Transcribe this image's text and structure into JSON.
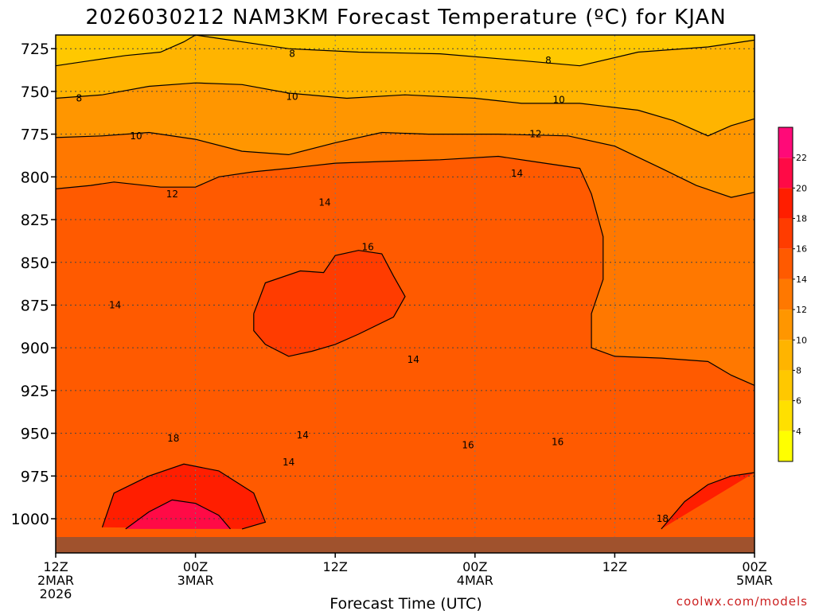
{
  "chart_data": {
    "type": "heatmap",
    "title": "2026030212 NAM3KM Forecast Temperature (ºC) for KJAN",
    "xlabel": "Forecast Time (UTC)",
    "ylabel": "",
    "y_axis": {
      "units": "hPa",
      "inverted": true,
      "range": [
        717,
        1020
      ],
      "ticks": [
        "725",
        "750",
        "775",
        "800",
        "825",
        "850",
        "875",
        "900",
        "925",
        "950",
        "975",
        "1000"
      ]
    },
    "x_axis": {
      "range_hours": [
        0,
        60
      ],
      "ticks": [
        {
          "line1": "12Z",
          "line2": "2MAR",
          "line3": "2026"
        },
        {
          "line1": "00Z",
          "line2": "3MAR",
          "line3": ""
        },
        {
          "line1": "12Z",
          "line2": "",
          "line3": ""
        },
        {
          "line1": "00Z",
          "line2": "4MAR",
          "line3": ""
        },
        {
          "line1": "12Z",
          "line2": "",
          "line3": ""
        },
        {
          "line1": "00Z",
          "line2": "5MAR",
          "line3": ""
        }
      ]
    },
    "grid": true,
    "ground_color": "#a0522d",
    "colorbar": {
      "placement": "right",
      "ticks": [
        "4",
        "6",
        "8",
        "10",
        "12",
        "14",
        "16",
        "18",
        "20",
        "22"
      ],
      "levels": [
        2,
        4,
        6,
        8,
        10,
        12,
        14,
        16,
        18,
        20,
        22,
        24
      ],
      "colors": [
        "#ffff00",
        "#ffe000",
        "#ffc800",
        "#ffb400",
        "#ff9600",
        "#ff7800",
        "#ff5a00",
        "#ff3c00",
        "#ff1e00",
        "#ff0a46",
        "#ff0a78"
      ]
    },
    "contour_labels": [
      {
        "value": "8",
        "x_hours": 20.3,
        "p": 728
      },
      {
        "value": "8",
        "x_hours": 42.3,
        "p": 732
      },
      {
        "value": "8",
        "x_hours": 2.0,
        "p": 754
      },
      {
        "value": "10",
        "x_hours": 20.3,
        "p": 753
      },
      {
        "value": "10",
        "x_hours": 43.2,
        "p": 755
      },
      {
        "value": "10",
        "x_hours": 6.9,
        "p": 776
      },
      {
        "value": "12",
        "x_hours": 41.2,
        "p": 775
      },
      {
        "value": "12",
        "x_hours": 10.0,
        "p": 810
      },
      {
        "value": "14",
        "x_hours": 39.6,
        "p": 798
      },
      {
        "value": "14",
        "x_hours": 23.1,
        "p": 815
      },
      {
        "value": "16",
        "x_hours": 26.8,
        "p": 841
      },
      {
        "value": "14",
        "x_hours": 5.1,
        "p": 875
      },
      {
        "value": "14",
        "x_hours": 30.7,
        "p": 907
      },
      {
        "value": "18",
        "x_hours": 10.1,
        "p": 953
      },
      {
        "value": "14",
        "x_hours": 21.2,
        "p": 951
      },
      {
        "value": "16",
        "x_hours": 35.4,
        "p": 957
      },
      {
        "value": "16",
        "x_hours": 43.1,
        "p": 955
      },
      {
        "value": "14",
        "x_hours": 20.0,
        "p": 967
      },
      {
        "value": "18",
        "x_hours": 52.1,
        "p": 1000
      }
    ],
    "contours": [
      {
        "level": 8,
        "points": [
          [
            0,
            735
          ],
          [
            3,
            732
          ],
          [
            6,
            729
          ],
          [
            9,
            727
          ],
          [
            11,
            721
          ],
          [
            12,
            717
          ],
          [
            20,
            725
          ],
          [
            26,
            727
          ],
          [
            33,
            728
          ],
          [
            40,
            732
          ],
          [
            45,
            735
          ],
          [
            50,
            727
          ],
          [
            56,
            724
          ],
          [
            60,
            720
          ]
        ]
      },
      {
        "level": 10,
        "points": [
          [
            0,
            754
          ],
          [
            4,
            752
          ],
          [
            8,
            747
          ],
          [
            12,
            745
          ],
          [
            16,
            746
          ],
          [
            20,
            751
          ],
          [
            25,
            754
          ],
          [
            30,
            752
          ],
          [
            36,
            754
          ],
          [
            40,
            757
          ],
          [
            45,
            757
          ],
          [
            50,
            761
          ],
          [
            53,
            767
          ],
          [
            56,
            776
          ],
          [
            58,
            770
          ],
          [
            60,
            766
          ]
        ]
      },
      {
        "level": 12,
        "points": [
          [
            0,
            777
          ],
          [
            4,
            776
          ],
          [
            8,
            774
          ],
          [
            12,
            778
          ],
          [
            16,
            785
          ],
          [
            20,
            787
          ],
          [
            24,
            780
          ],
          [
            28,
            774
          ],
          [
            32,
            775
          ],
          [
            38,
            775
          ],
          [
            44,
            776
          ],
          [
            48,
            782
          ],
          [
            52,
            795
          ],
          [
            55,
            805
          ],
          [
            58,
            812
          ],
          [
            60,
            809
          ]
        ]
      },
      {
        "level": 14,
        "points": [
          [
            0,
            807
          ],
          [
            3,
            805
          ],
          [
            5,
            803
          ],
          [
            9,
            806
          ],
          [
            12,
            806
          ],
          [
            14,
            800
          ],
          [
            17,
            797
          ],
          [
            20,
            795
          ],
          [
            24,
            792
          ],
          [
            28,
            791
          ],
          [
            33,
            790
          ],
          [
            38,
            788
          ],
          [
            41,
            791
          ],
          [
            45,
            795
          ],
          [
            46,
            810
          ],
          [
            47,
            835
          ],
          [
            47,
            860
          ],
          [
            46,
            880
          ],
          [
            46,
            900
          ],
          [
            48,
            905
          ],
          [
            52,
            906
          ],
          [
            56,
            908
          ],
          [
            58,
            916
          ],
          [
            60,
            922
          ]
        ]
      },
      {
        "level": 16,
        "points": [
          [
            17,
            880
          ],
          [
            18,
            862
          ],
          [
            21,
            855
          ],
          [
            23,
            856
          ],
          [
            24,
            846
          ],
          [
            26,
            843
          ],
          [
            28,
            845
          ],
          [
            29,
            858
          ],
          [
            30,
            870
          ],
          [
            29,
            882
          ],
          [
            26,
            892
          ],
          [
            24,
            898
          ],
          [
            22,
            902
          ],
          [
            20,
            905
          ],
          [
            18,
            898
          ],
          [
            17,
            890
          ],
          [
            17,
            880
          ]
        ]
      },
      {
        "level": 18,
        "points": [
          [
            4,
            1005
          ],
          [
            5,
            985
          ],
          [
            8,
            975
          ],
          [
            11,
            968
          ],
          [
            14,
            972
          ],
          [
            17,
            985
          ],
          [
            18,
            1002
          ],
          [
            16,
            1006
          ]
        ]
      },
      {
        "level": 18,
        "points": [
          [
            52,
            1006
          ],
          [
            54,
            990
          ],
          [
            56,
            980
          ],
          [
            58,
            975
          ],
          [
            60,
            973
          ]
        ]
      },
      {
        "level": 20,
        "points": [
          [
            6,
            1006
          ],
          [
            8,
            996
          ],
          [
            10,
            989
          ],
          [
            12,
            991
          ],
          [
            14,
            998
          ],
          [
            15,
            1006
          ]
        ]
      }
    ]
  },
  "credit": "coolwx.com/models"
}
